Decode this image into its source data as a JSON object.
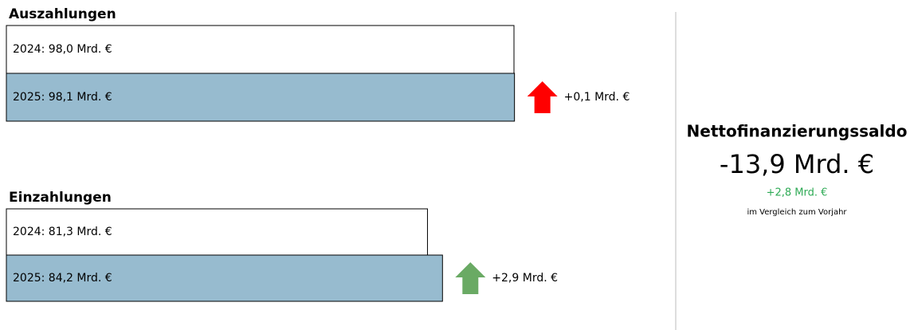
{
  "chart_data": [
    {
      "type": "bar",
      "title": "Auszahlungen",
      "values": [
        98.0,
        98.1
      ],
      "value_labels": [
        "2024: 98,0 Mrd. €",
        "2025: 98,1 Mrd. €"
      ],
      "colors": [
        "#ffffff",
        "#97bbcf"
      ],
      "xlim": [
        0,
        100
      ],
      "change_label": "+0,1 Mrd. €",
      "arrow_color": "#ff0000"
    },
    {
      "type": "bar",
      "title": "Einzahlungen",
      "values": [
        81.3,
        84.2
      ],
      "value_labels": [
        "2024: 81,3 Mrd. €",
        "2025: 84,2 Mrd. €"
      ],
      "colors": [
        "#ffffff",
        "#97bbcf"
      ],
      "xlim": [
        0,
        100
      ],
      "change_label": "+2,9 Mrd. €",
      "arrow_color": "#6aaa64"
    }
  ],
  "summary": {
    "title": "Nettofinanzierungssaldo",
    "value": "-13,9 Mrd. €",
    "change": "+2,8 Mrd. €",
    "note": "im Vergleich zum Vorjahr"
  }
}
